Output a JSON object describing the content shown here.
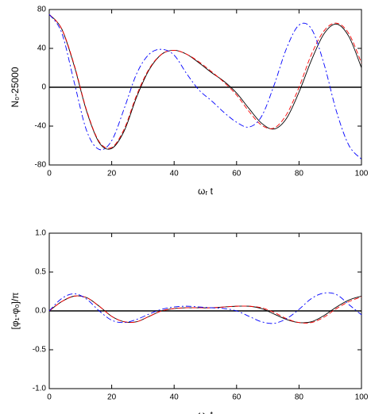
{
  "chart_data": [
    {
      "type": "line",
      "xlabel": "ωᵣ t",
      "ylabel": "N₀-25000",
      "x": [
        0,
        4,
        8,
        12,
        16,
        20,
        24,
        28,
        32,
        36,
        40,
        44,
        48,
        52,
        56,
        60,
        64,
        68,
        72,
        76,
        80,
        84,
        88,
        92,
        96,
        100
      ],
      "xlim": [
        0,
        100
      ],
      "xticks": [
        0,
        20,
        40,
        60,
        80,
        100
      ],
      "ylim": [
        -80,
        80
      ],
      "yticks": [
        -80,
        -40,
        0,
        40,
        80
      ],
      "hline": 0,
      "series": [
        {
          "color": "#000000",
          "dash": "solid",
          "values": [
            75,
            60,
            22,
            -25,
            -57,
            -63,
            -45,
            -10,
            18,
            34,
            38,
            34,
            25,
            15,
            6,
            -6,
            -22,
            -37,
            -43,
            -32,
            -5,
            28,
            55,
            65,
            52,
            20
          ]
        },
        {
          "color": "#ff0000",
          "dash": "dashed",
          "values": [
            75,
            60,
            23,
            -24,
            -56,
            -62,
            -43,
            -8,
            19,
            34,
            38,
            34,
            26,
            16,
            5,
            -8,
            -25,
            -39,
            -42,
            -28,
            0,
            34,
            58,
            66,
            55,
            25
          ]
        },
        {
          "color": "#0000ff",
          "dash": "dashdot",
          "values": [
            75,
            56,
            5,
            -45,
            -64,
            -55,
            -22,
            14,
            34,
            39,
            33,
            14,
            -3,
            -14,
            -26,
            -36,
            -41,
            -30,
            2,
            40,
            64,
            60,
            24,
            -25,
            -60,
            -74
          ]
        }
      ]
    },
    {
      "type": "line",
      "xlabel": "ωᵣ t",
      "ylabel": "[φ₁-φ₀]/π",
      "x": [
        0,
        4,
        8,
        12,
        16,
        20,
        24,
        28,
        32,
        36,
        40,
        44,
        48,
        52,
        56,
        60,
        64,
        68,
        72,
        76,
        80,
        84,
        88,
        92,
        96,
        100
      ],
      "xlim": [
        0,
        100
      ],
      "xticks": [
        0,
        20,
        40,
        60,
        80,
        100
      ],
      "ylim": [
        -1,
        1
      ],
      "yticks": [
        {
          "value": -1,
          "label": "-1.0"
        },
        {
          "value": -0.5,
          "label": "-0.5"
        },
        {
          "value": 0,
          "label": "0.0"
        },
        {
          "value": 0.5,
          "label": "0.5"
        },
        {
          "value": 1,
          "label": "1.0"
        }
      ],
      "hline": 0,
      "series": [
        {
          "color": "#000000",
          "dash": "solid",
          "values": [
            0,
            0.12,
            0.19,
            0.17,
            0.06,
            -0.07,
            -0.14,
            -0.14,
            -0.07,
            0,
            0.03,
            0.04,
            0.04,
            0.04,
            0.05,
            0.06,
            0.06,
            0.03,
            -0.04,
            -0.11,
            -0.15,
            -0.14,
            -0.06,
            0.05,
            0.14,
            0.19
          ]
        },
        {
          "color": "#ff0000",
          "dash": "dashed",
          "values": [
            0,
            0.12,
            0.19,
            0.17,
            0.06,
            -0.07,
            -0.14,
            -0.14,
            -0.07,
            0,
            0.03,
            0.04,
            0.04,
            0.04,
            0.05,
            0.06,
            0.06,
            0.04,
            -0.02,
            -0.1,
            -0.15,
            -0.15,
            -0.08,
            0.03,
            0.12,
            0.18
          ]
        },
        {
          "color": "#0000ff",
          "dash": "dashdot",
          "values": [
            0,
            0.16,
            0.22,
            0.15,
            0,
            -0.12,
            -0.15,
            -0.11,
            -0.04,
            0.02,
            0.05,
            0.06,
            0.05,
            0.04,
            0.03,
            0,
            -0.07,
            -0.14,
            -0.16,
            -0.1,
            0.02,
            0.16,
            0.23,
            0.21,
            0.08,
            -0.05
          ]
        }
      ]
    }
  ]
}
